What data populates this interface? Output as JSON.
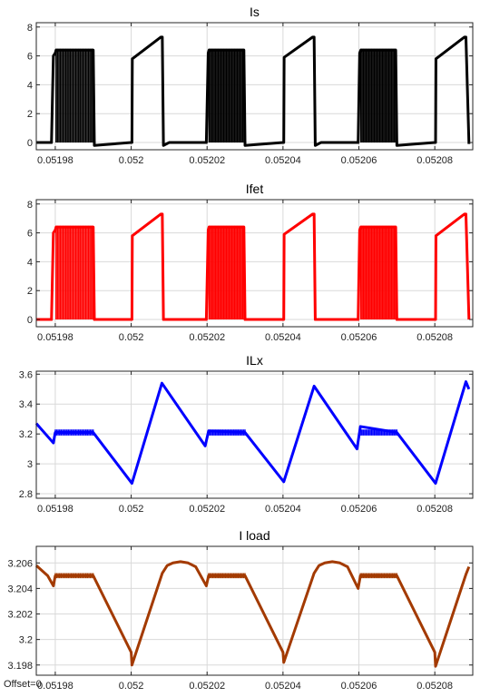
{
  "footer": {
    "offset": "Offset=0"
  },
  "chart_data": [
    {
      "type": "line",
      "title": "Is",
      "color": "#000000",
      "xlim": [
        0.051975,
        0.05209
      ],
      "ylim": [
        -0.5,
        8.3
      ],
      "xticks": [
        0.05198,
        0.052,
        0.05202,
        0.05204,
        0.05206,
        0.05208
      ],
      "xtick_labels": [
        "0.05198",
        "0.052",
        "0.05202",
        "0.05204",
        "0.05206",
        "0.05208"
      ],
      "yticks": [
        0,
        2,
        4,
        6,
        8
      ],
      "ytick_labels": [
        "0",
        "2",
        "4",
        "6",
        "8"
      ],
      "grid": true,
      "series": [
        {
          "x": [
            0.051975,
            0.051979,
            0.0519795,
            0.05198,
            0.0519802,
            0.05199,
            0.0519903,
            0.052,
            0.0520002,
            0.0520003,
            0.0520078,
            0.0520082,
            0.0520085,
            0.05201,
            0.0520198,
            0.0520203,
            0.0520205,
            0.0520297,
            0.05203,
            0.05204,
            0.0520402,
            0.0520403,
            0.0520478,
            0.0520482,
            0.0520485,
            0.05205,
            0.0520598,
            0.0520602,
            0.0520605,
            0.0520697,
            0.05207,
            0.05208,
            0.0520802,
            0.0520803,
            0.0520878,
            0.0520882,
            0.052089
          ],
          "y": [
            0,
            0,
            6.0,
            6.2,
            6.4,
            6.4,
            -0.2,
            0,
            0,
            5.8,
            7.3,
            7.3,
            -0.2,
            0,
            0,
            6.2,
            6.4,
            6.4,
            -0.2,
            0,
            0,
            5.9,
            7.3,
            7.3,
            -0.2,
            0,
            0,
            6.2,
            6.4,
            6.4,
            -0.2,
            0,
            0,
            5.8,
            7.3,
            7.3,
            -0.1
          ],
          "ripple": [
            [
              0.0519802,
              0.0519899
            ],
            [
              0.0520205,
              0.0520297
            ],
            [
              0.0520605,
              0.0520697
            ]
          ],
          "ripple_range": [
            0.0,
            6.5
          ]
        }
      ]
    },
    {
      "type": "line",
      "title": "Ifet",
      "color": "#ff0000",
      "xlim": [
        0.051975,
        0.05209
      ],
      "ylim": [
        -0.5,
        8.3
      ],
      "xticks": [
        0.05198,
        0.052,
        0.05202,
        0.05204,
        0.05206,
        0.05208
      ],
      "xtick_labels": [
        "0.05198",
        "0.052",
        "0.05202",
        "0.05204",
        "0.05206",
        "0.05208"
      ],
      "yticks": [
        0,
        2,
        4,
        6,
        8
      ],
      "ytick_labels": [
        "0",
        "2",
        "4",
        "6",
        "8"
      ],
      "grid": true,
      "series": [
        {
          "x": [
            0.051975,
            0.051979,
            0.0519795,
            0.05198,
            0.0519802,
            0.05199,
            0.0519903,
            0.052,
            0.0520002,
            0.0520003,
            0.0520078,
            0.0520082,
            0.0520085,
            0.05201,
            0.0520198,
            0.0520203,
            0.0520205,
            0.0520297,
            0.05203,
            0.05204,
            0.0520402,
            0.0520403,
            0.0520478,
            0.0520482,
            0.0520485,
            0.05205,
            0.0520598,
            0.0520602,
            0.0520605,
            0.0520697,
            0.05207,
            0.05208,
            0.0520802,
            0.0520803,
            0.0520878,
            0.0520882,
            0.052089
          ],
          "y": [
            0,
            0,
            6.0,
            6.2,
            6.4,
            6.4,
            0,
            0,
            0,
            5.8,
            7.3,
            7.3,
            0,
            0,
            0,
            6.2,
            6.4,
            6.4,
            0,
            0,
            0,
            5.9,
            7.3,
            7.3,
            0,
            0,
            0,
            6.2,
            6.4,
            6.4,
            0,
            0,
            0,
            5.8,
            7.3,
            7.3,
            0
          ],
          "ripple": [
            [
              0.0519802,
              0.0519899
            ],
            [
              0.0520205,
              0.0520297
            ],
            [
              0.0520605,
              0.0520697
            ]
          ],
          "ripple_range": [
            0.0,
            6.5
          ]
        }
      ]
    },
    {
      "type": "line",
      "title": "ILx",
      "color": "#0000ff",
      "xlim": [
        0.051975,
        0.05209
      ],
      "ylim": [
        2.77,
        3.62
      ],
      "xticks": [
        0.05198,
        0.052,
        0.05202,
        0.05204,
        0.05206,
        0.05208
      ],
      "xtick_labels": [
        "0.05198",
        "0.052",
        "0.05202",
        "0.05204",
        "0.05206",
        "0.05208"
      ],
      "yticks": [
        2.8,
        3.0,
        3.2,
        3.4,
        3.6
      ],
      "ytick_labels": [
        "2.8",
        "3",
        "3.2",
        "3.4",
        "3.6"
      ],
      "grid": true,
      "series": [
        {
          "x": [
            0.051975,
            0.0519795,
            0.05198,
            0.05199,
            0.0520002,
            0.0520081,
            0.0520195,
            0.0520204,
            0.05203,
            0.0520402,
            0.0520482,
            0.0520595,
            0.0520604,
            0.05207,
            0.0520802,
            0.0520882,
            0.052089
          ],
          "y": [
            3.27,
            3.14,
            3.21,
            3.21,
            2.87,
            3.54,
            3.12,
            3.22,
            3.21,
            2.88,
            3.52,
            3.1,
            3.25,
            3.21,
            2.87,
            3.55,
            3.5
          ],
          "ripple": [
            [
              0.05198,
              0.05199
            ],
            [
              0.0520204,
              0.05203
            ],
            [
              0.0520604,
              0.05207
            ]
          ],
          "ripple_range": [
            3.19,
            3.23
          ]
        }
      ]
    },
    {
      "type": "line",
      "title": "I load",
      "color": "#a33a00",
      "xlim": [
        0.051975,
        0.05209
      ],
      "ylim": [
        3.1972,
        3.2073
      ],
      "xticks": [
        0.05198,
        0.052,
        0.05202,
        0.05204,
        0.05206,
        0.05208
      ],
      "xtick_labels": [
        "0.05198",
        "0.052",
        "0.05202",
        "0.05204",
        "0.05206",
        "0.05208"
      ],
      "yticks": [
        3.198,
        3.2,
        3.202,
        3.204,
        3.206
      ],
      "ytick_labels": [
        "3.198",
        "3.2",
        "3.202",
        "3.204",
        "3.206"
      ],
      "grid": true,
      "series": [
        {
          "x": [
            0.051975,
            0.051978,
            0.0519795,
            0.05198,
            0.05199,
            0.052,
            0.0520002,
            0.0520082,
            0.0520095,
            0.052011,
            0.052013,
            0.052015,
            0.052017,
            0.0520198,
            0.0520204,
            0.05203,
            0.05204,
            0.0520402,
            0.0520482,
            0.0520495,
            0.052051,
            0.052053,
            0.052055,
            0.052057,
            0.0520598,
            0.0520604,
            0.05207,
            0.05208,
            0.0520802,
            0.0520882,
            0.052089
          ],
          "y": [
            3.2058,
            3.205,
            3.2042,
            3.205,
            3.205,
            3.199,
            3.198,
            3.2052,
            3.2058,
            3.206,
            3.2061,
            3.206,
            3.2057,
            3.2042,
            3.205,
            3.205,
            3.199,
            3.1982,
            3.2052,
            3.2058,
            3.206,
            3.2061,
            3.206,
            3.2057,
            3.204,
            3.205,
            3.205,
            3.199,
            3.1979,
            3.2051,
            3.2057
          ],
          "ripple": [
            [
              0.05198,
              0.05199
            ],
            [
              0.0520204,
              0.05203
            ],
            [
              0.0520604,
              0.05207
            ]
          ],
          "ripple_range": [
            3.2048,
            3.2052
          ]
        }
      ]
    }
  ]
}
